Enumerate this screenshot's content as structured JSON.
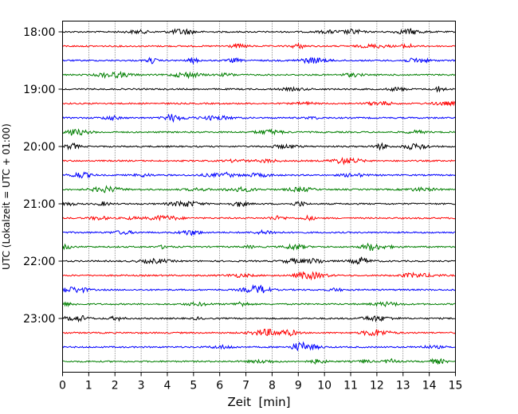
{
  "chart_data": {
    "type": "line",
    "title": "",
    "xlabel": "Zeit  [min]",
    "ylabel": "UTC (Lokalzeit = UTC + 01:00)",
    "xlim": [
      0,
      15
    ],
    "x_ticks": [
      "0",
      "1",
      "2",
      "3",
      "4",
      "5",
      "6",
      "7",
      "8",
      "9",
      "10",
      "11",
      "12",
      "13",
      "14",
      "15"
    ],
    "y_ticks": [
      "18:00",
      "19:00",
      "20:00",
      "21:00",
      "22:00",
      "23:00"
    ],
    "grid": "vertical dotted at each minute",
    "trace_interval_minutes": 15,
    "time_range": [
      "18:00",
      "23:45"
    ],
    "trace_colors_cycle": [
      "#000000",
      "#ff0000",
      "#0000ff",
      "#007f00"
    ],
    "series": [
      {
        "start": "18:00",
        "color": "#000000"
      },
      {
        "start": "18:15",
        "color": "#ff0000"
      },
      {
        "start": "18:30",
        "color": "#0000ff"
      },
      {
        "start": "18:45",
        "color": "#007f00"
      },
      {
        "start": "19:00",
        "color": "#000000"
      },
      {
        "start": "19:15",
        "color": "#ff0000"
      },
      {
        "start": "19:30",
        "color": "#0000ff"
      },
      {
        "start": "19:45",
        "color": "#007f00"
      },
      {
        "start": "20:00",
        "color": "#000000"
      },
      {
        "start": "20:15",
        "color": "#ff0000"
      },
      {
        "start": "20:30",
        "color": "#0000ff"
      },
      {
        "start": "20:45",
        "color": "#007f00"
      },
      {
        "start": "21:00",
        "color": "#000000"
      },
      {
        "start": "21:15",
        "color": "#ff0000"
      },
      {
        "start": "21:30",
        "color": "#0000ff"
      },
      {
        "start": "21:45",
        "color": "#007f00"
      },
      {
        "start": "22:00",
        "color": "#000000"
      },
      {
        "start": "22:15",
        "color": "#ff0000"
      },
      {
        "start": "22:30",
        "color": "#0000ff"
      },
      {
        "start": "22:45",
        "color": "#007f00"
      },
      {
        "start": "23:00",
        "color": "#000000"
      },
      {
        "start": "23:15",
        "color": "#ff0000"
      },
      {
        "start": "23:30",
        "color": "#0000ff"
      },
      {
        "start": "23:45",
        "color": "#007f00"
      }
    ]
  }
}
